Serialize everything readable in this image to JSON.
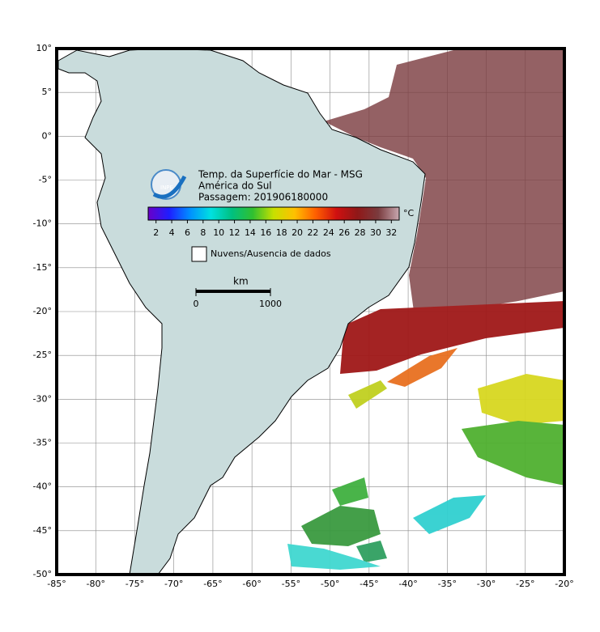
{
  "map": {
    "logo": "INPE",
    "title": "Temp. da Superfície do Mar - MSG",
    "region": "América do Sul",
    "pass": "Passagem: 201906180000",
    "colorbar": {
      "unit": "°C",
      "range": [
        1,
        33
      ],
      "ticks": [
        2,
        4,
        6,
        8,
        10,
        12,
        14,
        16,
        18,
        20,
        22,
        24,
        26,
        28,
        30,
        32
      ],
      "colors": [
        "#6a00c8",
        "#1e1eff",
        "#0090ff",
        "#00e0e0",
        "#00c080",
        "#30c030",
        "#c8e000",
        "#ffc000",
        "#ff6000",
        "#d01010",
        "#901818",
        "#7a3b3e",
        "#c8a8b0"
      ]
    },
    "legend": "Nuvens/Ausencia de dados",
    "scale": {
      "unit": "km",
      "start": 0,
      "end": 1000
    },
    "lonlim": [
      -85,
      -20
    ],
    "latlim": [
      -50,
      10
    ],
    "lon_ticks": [
      {
        "value": -85,
        "label": "-85°"
      },
      {
        "value": -80,
        "label": "-80°"
      },
      {
        "value": -75,
        "label": "-75°"
      },
      {
        "value": -70,
        "label": "-70°"
      },
      {
        "value": -65,
        "label": "-65°"
      },
      {
        "value": -60,
        "label": "-60°"
      },
      {
        "value": -55,
        "label": "-55°"
      },
      {
        "value": -50,
        "label": "-50°"
      },
      {
        "value": -45,
        "label": "-45°"
      },
      {
        "value": -40,
        "label": "-40°"
      },
      {
        "value": -35,
        "label": "-35°"
      },
      {
        "value": -30,
        "label": "-30°"
      },
      {
        "value": -25,
        "label": "-25°"
      },
      {
        "value": -20,
        "label": "-20°"
      }
    ],
    "lat_ticks": [
      {
        "value": 10,
        "label": "10°"
      },
      {
        "value": 5,
        "label": "5°"
      },
      {
        "value": 0,
        "label": "0°"
      },
      {
        "value": -5,
        "label": "-5°"
      },
      {
        "value": -10,
        "label": "-10°"
      },
      {
        "value": -15,
        "label": "-15°"
      },
      {
        "value": -20,
        "label": "-20°"
      },
      {
        "value": -25,
        "label": "-25°"
      },
      {
        "value": -30,
        "label": "-30°"
      },
      {
        "value": -35,
        "label": "-35°"
      },
      {
        "value": -40,
        "label": "-40°"
      },
      {
        "value": -45,
        "label": "-45°"
      },
      {
        "value": -50,
        "label": "-50°"
      }
    ]
  }
}
